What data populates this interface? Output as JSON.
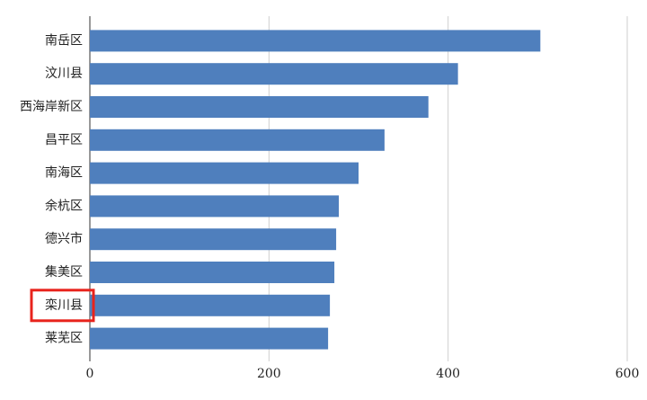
{
  "chart_data": {
    "type": "bar",
    "orientation": "horizontal",
    "categories": [
      "南岳区",
      "汶川县",
      "西海岸新区",
      "昌平区",
      "南海区",
      "余杭区",
      "德兴市",
      "集美区",
      "栾川县",
      "莱芜区"
    ],
    "values": [
      503,
      411,
      378,
      329,
      300,
      278,
      275,
      273,
      268,
      266
    ],
    "color": "#4f7fbd",
    "xlim": [
      0,
      600
    ],
    "xticks": [
      0,
      200,
      400,
      600
    ],
    "grid": true,
    "highlight": "栾川县",
    "highlight_color": "#e8231c"
  }
}
